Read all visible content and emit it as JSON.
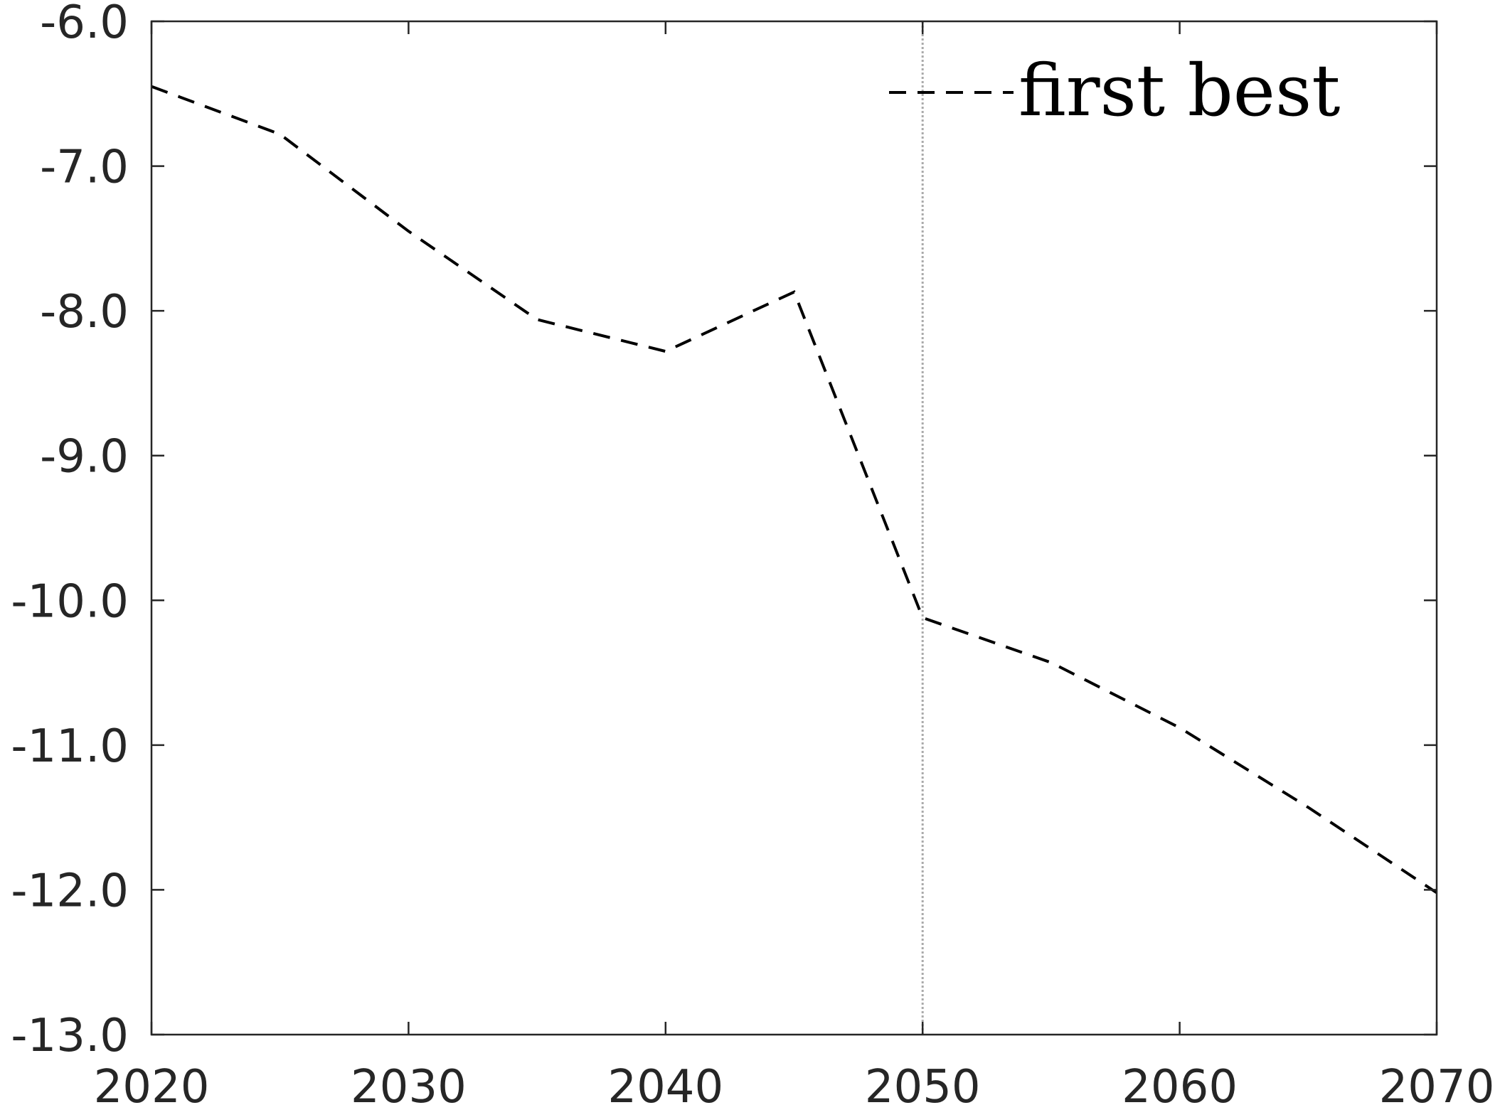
{
  "chart_data": {
    "type": "line",
    "title": "",
    "xlabel": "",
    "ylabel": "",
    "xlim": [
      2020,
      2070
    ],
    "ylim": [
      -13.0,
      -6.0
    ],
    "x_ticks": [
      2020,
      2030,
      2040,
      2050,
      2060,
      2070
    ],
    "y_ticks": [
      -6.0,
      -7.0,
      -8.0,
      -9.0,
      -10.0,
      -11.0,
      -12.0,
      -13.0
    ],
    "x_tick_labels": [
      "2020",
      "2030",
      "2040",
      "2050",
      "2060",
      "2070"
    ],
    "y_tick_labels": [
      "-6.0",
      "-7.0",
      "-8.0",
      "-9.0",
      "-10.0",
      "-11.0",
      "-12.0",
      "-13.0"
    ],
    "grid": false,
    "reference_line": {
      "x": 2050,
      "style": "dotted",
      "color": "#aaaaaa"
    },
    "legend": {
      "position": "top-right",
      "entries": [
        "first best"
      ]
    },
    "series": [
      {
        "name": "first best",
        "style": "dashed",
        "color": "#000000",
        "x": [
          2020,
          2025,
          2030,
          2035,
          2040,
          2045,
          2050,
          2055,
          2060,
          2065,
          2070
        ],
        "y": [
          -6.45,
          -6.78,
          -7.45,
          -8.06,
          -8.28,
          -7.87,
          -10.12,
          -10.43,
          -10.88,
          -11.43,
          -12.02
        ]
      }
    ]
  }
}
